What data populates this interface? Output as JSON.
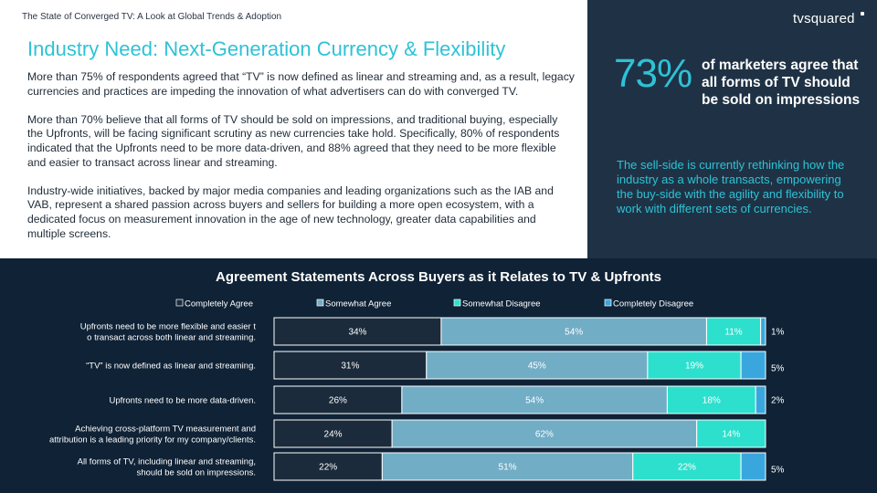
{
  "header": {
    "doc_title": "The State of Converged TV: A Look at Global Trends & Adoption",
    "logo": "tvsquared"
  },
  "main": {
    "heading": "Industry Need: Next-Generation Currency & Flexibility",
    "paragraphs": [
      "More than 75% of respondents agreed that “TV” is now defined as linear and streaming and, as a result, legacy currencies and practices are impeding the innovation of what advertisers can do with converged TV.",
      "More than 70% believe that all forms of TV should be sold on impressions, and traditional buying, especially the Upfronts, will be facing significant scrutiny as new currencies take hold. Specifically, 80% of respondents indicated that the Upfronts need to be more data-driven, and 88% agreed that they need to be more flexible and easier to transact across linear and streaming.",
      "Industry-wide initiatives, backed by major media companies and leading organizations such as the IAB and VAB, represent a shared passion across buyers and sellers for building a more open ecosystem, with a dedicated focus on measurement innovation in the age of new technology, greater data capabilities and multiple screens."
    ]
  },
  "sidebar": {
    "stat_value": "73%",
    "stat_text": "of marketers agree that all forms of TV should be sold on impressions",
    "note": "The sell-side is currently rethinking how the industry as a whole transacts, empowering the buy-side with the agility and flexibility to work with different sets of currencies."
  },
  "colors": {
    "completely_agree": "#1b2b3b",
    "somewhat_agree": "#72adc6",
    "somewhat_disagree": "#2ce0cd",
    "completely_disagree": "#39a7dd"
  },
  "chart_data": {
    "type": "bar",
    "orientation": "horizontal",
    "stacked": true,
    "title": "Agreement Statements Across Buyers as it Relates to TV & Upfronts",
    "legend_position": "top",
    "categories": [
      "Upfronts need to be more flexible and easier to transact across both linear and streaming.",
      "“TV” is now defined as linear and streaming.",
      "Upfronts need to be more data-driven.",
      "Achieving cross-platform TV measurement and attribution is a leading priority for my company/clients.",
      "All forms of TV, including linear and streaming, should be sold on impressions."
    ],
    "series": [
      {
        "name": "Completely Agree",
        "values": [
          34,
          31,
          26,
          24,
          22
        ]
      },
      {
        "name": "Somewhat Agree",
        "values": [
          54,
          45,
          54,
          62,
          51
        ]
      },
      {
        "name": "Somewhat Disagree",
        "values": [
          11,
          19,
          18,
          14,
          22
        ]
      },
      {
        "name": "Completely Disagree",
        "values": [
          1,
          5,
          2,
          0,
          5
        ]
      }
    ],
    "value_suffix": "%"
  }
}
